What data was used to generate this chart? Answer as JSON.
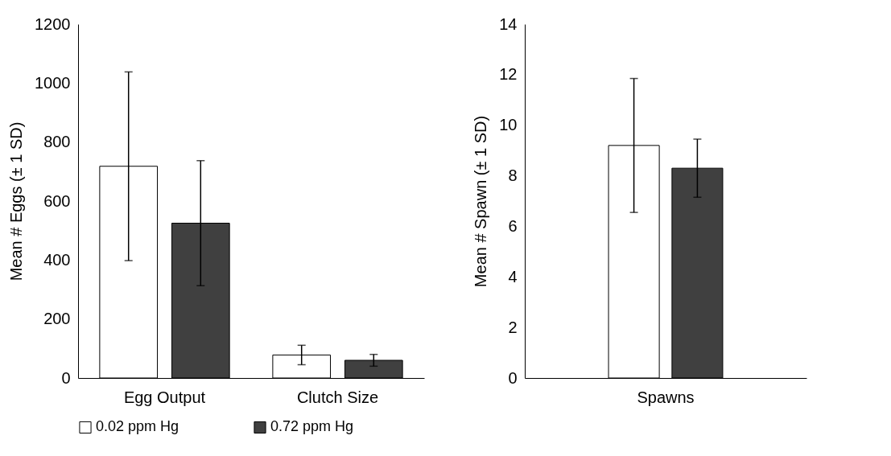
{
  "chart_data": [
    {
      "type": "bar",
      "ylabel": "Mean # Eggs (± 1 SD)",
      "categories": [
        "Egg Output",
        "Clutch Size"
      ],
      "ylim": [
        0,
        1200
      ],
      "yticks": [
        0,
        200,
        400,
        600,
        800,
        1000,
        1200
      ],
      "grid": false,
      "legend": "bottom",
      "series": [
        {
          "name": "0.02 ppm Hg",
          "color": "#ffffff",
          "values": [
            718,
            78
          ],
          "errors": [
            320,
            33
          ]
        },
        {
          "name": "0.72 ppm Hg",
          "color": "#404040",
          "values": [
            525,
            60
          ],
          "errors": [
            212,
            20
          ]
        }
      ]
    },
    {
      "type": "bar",
      "ylabel": "Mean # Spawn (± 1 SD)",
      "categories": [
        "Spawns"
      ],
      "ylim": [
        0,
        14
      ],
      "yticks": [
        0,
        2,
        4,
        6,
        8,
        10,
        12,
        14
      ],
      "grid": false,
      "legend": "bottom",
      "series": [
        {
          "name": "0.02 ppm Hg",
          "color": "#ffffff",
          "values": [
            9.2
          ],
          "errors": [
            2.65
          ]
        },
        {
          "name": "0.72 ppm Hg",
          "color": "#404040",
          "values": [
            8.3
          ],
          "errors": [
            1.15
          ]
        }
      ]
    }
  ]
}
